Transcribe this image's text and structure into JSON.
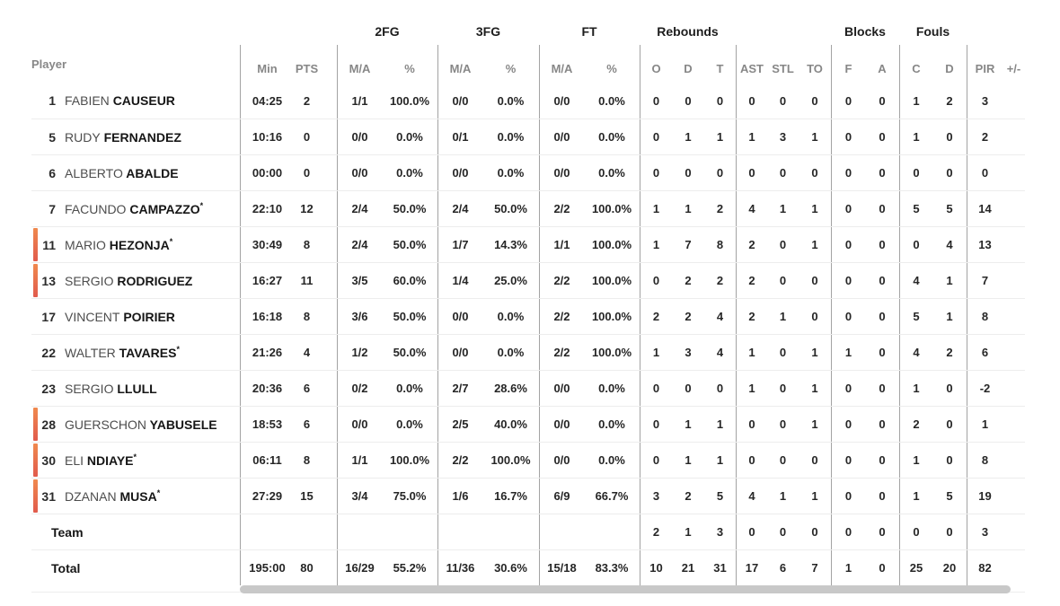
{
  "header": {
    "groups": [
      "2FG",
      "3FG",
      "FT",
      "Rebounds",
      "Blocks",
      "Fouls"
    ],
    "columns": {
      "player": "Player",
      "min": "Min",
      "pts": "PTS",
      "ma": "M/A",
      "pct": "%",
      "o": "O",
      "d": "D",
      "t": "T",
      "ast": "AST",
      "stl": "STL",
      "to": "TO",
      "f": "F",
      "a": "A",
      "c": "C",
      "d2": "D",
      "pir": "PIR",
      "pm": "+/-"
    }
  },
  "rows": [
    {
      "type": "player",
      "num": "1",
      "first": "FABIEN",
      "last": "CAUSEUR",
      "starter": false,
      "on_court": false,
      "min": "04:25",
      "pts": "2",
      "fg2ma": "1/1",
      "fg2pct": "100.0%",
      "fg3ma": "0/0",
      "fg3pct": "0.0%",
      "ftma": "0/0",
      "ftpct": "0.0%",
      "ro": "0",
      "rd": "0",
      "rt": "0",
      "ast": "0",
      "stl": "0",
      "to": "0",
      "bf": "0",
      "ba": "0",
      "fc": "1",
      "fd": "2",
      "pir": "3",
      "pm": ""
    },
    {
      "type": "player",
      "num": "5",
      "first": "RUDY",
      "last": "FERNANDEZ",
      "starter": false,
      "on_court": false,
      "min": "10:16",
      "pts": "0",
      "fg2ma": "0/0",
      "fg2pct": "0.0%",
      "fg3ma": "0/1",
      "fg3pct": "0.0%",
      "ftma": "0/0",
      "ftpct": "0.0%",
      "ro": "0",
      "rd": "1",
      "rt": "1",
      "ast": "1",
      "stl": "3",
      "to": "1",
      "bf": "0",
      "ba": "0",
      "fc": "1",
      "fd": "0",
      "pir": "2",
      "pm": ""
    },
    {
      "type": "player",
      "num": "6",
      "first": "ALBERTO",
      "last": "ABALDE",
      "starter": false,
      "on_court": false,
      "min": "00:00",
      "pts": "0",
      "fg2ma": "0/0",
      "fg2pct": "0.0%",
      "fg3ma": "0/0",
      "fg3pct": "0.0%",
      "ftma": "0/0",
      "ftpct": "0.0%",
      "ro": "0",
      "rd": "0",
      "rt": "0",
      "ast": "0",
      "stl": "0",
      "to": "0",
      "bf": "0",
      "ba": "0",
      "fc": "0",
      "fd": "0",
      "pir": "0",
      "pm": ""
    },
    {
      "type": "player",
      "num": "7",
      "first": "FACUNDO",
      "last": "CAMPAZZO",
      "starter": true,
      "on_court": false,
      "min": "22:10",
      "pts": "12",
      "fg2ma": "2/4",
      "fg2pct": "50.0%",
      "fg3ma": "2/4",
      "fg3pct": "50.0%",
      "ftma": "2/2",
      "ftpct": "100.0%",
      "ro": "1",
      "rd": "1",
      "rt": "2",
      "ast": "4",
      "stl": "1",
      "to": "1",
      "bf": "0",
      "ba": "0",
      "fc": "5",
      "fd": "5",
      "pir": "14",
      "pm": ""
    },
    {
      "type": "player",
      "num": "11",
      "first": "MARIO",
      "last": "HEZONJA",
      "starter": true,
      "on_court": true,
      "min": "30:49",
      "pts": "8",
      "fg2ma": "2/4",
      "fg2pct": "50.0%",
      "fg3ma": "1/7",
      "fg3pct": "14.3%",
      "ftma": "1/1",
      "ftpct": "100.0%",
      "ro": "1",
      "rd": "7",
      "rt": "8",
      "ast": "2",
      "stl": "0",
      "to": "1",
      "bf": "0",
      "ba": "0",
      "fc": "0",
      "fd": "4",
      "pir": "13",
      "pm": ""
    },
    {
      "type": "player",
      "num": "13",
      "first": "SERGIO",
      "last": "RODRIGUEZ",
      "starter": false,
      "on_court": true,
      "min": "16:27",
      "pts": "11",
      "fg2ma": "3/5",
      "fg2pct": "60.0%",
      "fg3ma": "1/4",
      "fg3pct": "25.0%",
      "ftma": "2/2",
      "ftpct": "100.0%",
      "ro": "0",
      "rd": "2",
      "rt": "2",
      "ast": "2",
      "stl": "0",
      "to": "0",
      "bf": "0",
      "ba": "0",
      "fc": "4",
      "fd": "1",
      "pir": "7",
      "pm": ""
    },
    {
      "type": "player",
      "num": "17",
      "first": "VINCENT",
      "last": "POIRIER",
      "starter": false,
      "on_court": false,
      "min": "16:18",
      "pts": "8",
      "fg2ma": "3/6",
      "fg2pct": "50.0%",
      "fg3ma": "0/0",
      "fg3pct": "0.0%",
      "ftma": "2/2",
      "ftpct": "100.0%",
      "ro": "2",
      "rd": "2",
      "rt": "4",
      "ast": "2",
      "stl": "1",
      "to": "0",
      "bf": "0",
      "ba": "0",
      "fc": "5",
      "fd": "1",
      "pir": "8",
      "pm": ""
    },
    {
      "type": "player",
      "num": "22",
      "first": "WALTER",
      "last": "TAVARES",
      "starter": true,
      "on_court": false,
      "min": "21:26",
      "pts": "4",
      "fg2ma": "1/2",
      "fg2pct": "50.0%",
      "fg3ma": "0/0",
      "fg3pct": "0.0%",
      "ftma": "2/2",
      "ftpct": "100.0%",
      "ro": "1",
      "rd": "3",
      "rt": "4",
      "ast": "1",
      "stl": "0",
      "to": "1",
      "bf": "1",
      "ba": "0",
      "fc": "4",
      "fd": "2",
      "pir": "6",
      "pm": ""
    },
    {
      "type": "player",
      "num": "23",
      "first": "SERGIO",
      "last": "LLULL",
      "starter": false,
      "on_court": false,
      "min": "20:36",
      "pts": "6",
      "fg2ma": "0/2",
      "fg2pct": "0.0%",
      "fg3ma": "2/7",
      "fg3pct": "28.6%",
      "ftma": "0/0",
      "ftpct": "0.0%",
      "ro": "0",
      "rd": "0",
      "rt": "0",
      "ast": "1",
      "stl": "0",
      "to": "1",
      "bf": "0",
      "ba": "0",
      "fc": "1",
      "fd": "0",
      "pir": "-2",
      "pm": ""
    },
    {
      "type": "player",
      "num": "28",
      "first": "GUERSCHON",
      "last": "YABUSELE",
      "starter": false,
      "on_court": true,
      "min": "18:53",
      "pts": "6",
      "fg2ma": "0/0",
      "fg2pct": "0.0%",
      "fg3ma": "2/5",
      "fg3pct": "40.0%",
      "ftma": "0/0",
      "ftpct": "0.0%",
      "ro": "0",
      "rd": "1",
      "rt": "1",
      "ast": "0",
      "stl": "0",
      "to": "1",
      "bf": "0",
      "ba": "0",
      "fc": "2",
      "fd": "0",
      "pir": "1",
      "pm": ""
    },
    {
      "type": "player",
      "num": "30",
      "first": "ELI",
      "last": "NDIAYE",
      "starter": true,
      "on_court": true,
      "min": "06:11",
      "pts": "8",
      "fg2ma": "1/1",
      "fg2pct": "100.0%",
      "fg3ma": "2/2",
      "fg3pct": "100.0%",
      "ftma": "0/0",
      "ftpct": "0.0%",
      "ro": "0",
      "rd": "1",
      "rt": "1",
      "ast": "0",
      "stl": "0",
      "to": "0",
      "bf": "0",
      "ba": "0",
      "fc": "1",
      "fd": "0",
      "pir": "8",
      "pm": ""
    },
    {
      "type": "player",
      "num": "31",
      "first": "DZANAN",
      "last": "MUSA",
      "starter": true,
      "on_court": true,
      "min": "27:29",
      "pts": "15",
      "fg2ma": "3/4",
      "fg2pct": "75.0%",
      "fg3ma": "1/6",
      "fg3pct": "16.7%",
      "ftma": "6/9",
      "ftpct": "66.7%",
      "ro": "3",
      "rd": "2",
      "rt": "5",
      "ast": "4",
      "stl": "1",
      "to": "1",
      "bf": "0",
      "ba": "0",
      "fc": "1",
      "fd": "5",
      "pir": "19",
      "pm": ""
    },
    {
      "type": "summary",
      "label": "Team",
      "starter": false,
      "on_court": false,
      "min": "",
      "pts": "",
      "fg2ma": "",
      "fg2pct": "",
      "fg3ma": "",
      "fg3pct": "",
      "ftma": "",
      "ftpct": "",
      "ro": "2",
      "rd": "1",
      "rt": "3",
      "ast": "0",
      "stl": "0",
      "to": "0",
      "bf": "0",
      "ba": "0",
      "fc": "0",
      "fd": "0",
      "pir": "3",
      "pm": ""
    },
    {
      "type": "summary",
      "label": "Total",
      "starter": false,
      "on_court": false,
      "min": "195:00",
      "pts": "80",
      "fg2ma": "16/29",
      "fg2pct": "55.2%",
      "fg3ma": "11/36",
      "fg3pct": "30.6%",
      "ftma": "15/18",
      "ftpct": "83.3%",
      "ro": "10",
      "rd": "21",
      "rt": "31",
      "ast": "17",
      "stl": "6",
      "to": "7",
      "bf": "1",
      "ba": "0",
      "fc": "25",
      "fd": "20",
      "pir": "82",
      "pm": ""
    }
  ],
  "colors": {
    "accent_top": "#F0894E",
    "accent_bottom": "#E15B4D",
    "scrollbar": "#C8C8C8"
  }
}
